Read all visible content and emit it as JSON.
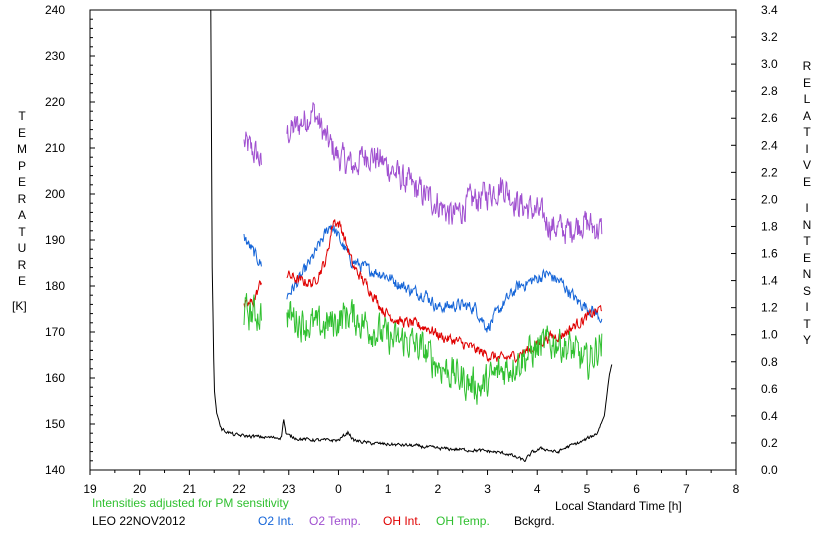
{
  "chart_data": {
    "type": "line",
    "title": "",
    "left_axis": {
      "label_letters": [
        "T",
        "E",
        "M",
        "P",
        "E",
        "R",
        "A",
        "T",
        "U",
        "R",
        "E"
      ],
      "unit": "[K]",
      "ylim": [
        140,
        240
      ],
      "ticks": [
        140,
        150,
        160,
        170,
        180,
        190,
        200,
        210,
        220,
        230,
        240
      ]
    },
    "right_axis": {
      "label_word1": [
        "R",
        "E",
        "L",
        "A",
        "T",
        "I",
        "V",
        "E"
      ],
      "label_word2": [
        "I",
        "N",
        "T",
        "E",
        "N",
        "S",
        "I",
        "T",
        "Y"
      ],
      "ylim": [
        0.0,
        3.4
      ],
      "ticks": [
        "0.0",
        "0.2",
        "0.4",
        "0.6",
        "0.8",
        "1.0",
        "1.2",
        "1.4",
        "1.6",
        "1.8",
        "2.0",
        "2.2",
        "2.4",
        "2.6",
        "2.8",
        "3.0",
        "3.2",
        "3.4"
      ]
    },
    "x_axis": {
      "label": "Local Standard Time [h]",
      "ticks": [
        "19",
        "20",
        "21",
        "22",
        "23",
        "0",
        "1",
        "2",
        "3",
        "4",
        "5",
        "6",
        "7",
        "8"
      ],
      "xlim": [
        19,
        32
      ]
    },
    "note": "Intensities adjusted for PM sensitivity",
    "station": "LEO 22NOV2012",
    "legend": [
      {
        "name": "O2 Int.",
        "color": "#1565d8"
      },
      {
        "name": "O2 Temp.",
        "color": "#a050d0"
      },
      {
        "name": "OH Int.",
        "color": "#e00000"
      },
      {
        "name": "OH Temp.",
        "color": "#30c030"
      },
      {
        "name": "Bckgrd.",
        "color": "#000000"
      }
    ],
    "series": [
      {
        "key": "o2temp",
        "axis": "left",
        "color": "#a050d0",
        "noise": 5,
        "breaks": [
          [
            22.45,
            22.95
          ]
        ],
        "trend": [
          [
            22.1,
            211
          ],
          [
            22.4,
            208
          ],
          [
            22.5,
            203
          ],
          [
            22.8,
            200
          ],
          [
            22.95,
            213
          ],
          [
            23.2,
            215
          ],
          [
            23.5,
            218
          ],
          [
            23.75,
            212
          ],
          [
            24.0,
            208
          ],
          [
            24.3,
            206
          ],
          [
            24.6,
            209
          ],
          [
            25.0,
            206
          ],
          [
            25.3,
            203
          ],
          [
            25.7,
            200
          ],
          [
            26.0,
            198
          ],
          [
            26.3,
            195
          ],
          [
            26.6,
            198
          ],
          [
            27.0,
            200
          ],
          [
            27.3,
            202
          ],
          [
            27.6,
            198
          ],
          [
            28.0,
            196
          ],
          [
            28.3,
            193
          ],
          [
            28.6,
            192
          ],
          [
            28.9,
            194
          ],
          [
            29.3,
            192
          ]
        ]
      },
      {
        "key": "o2int",
        "axis": "right",
        "color": "#1565d8",
        "noise": 1.6,
        "breaks": [
          [
            22.45,
            22.95
          ]
        ],
        "trend": [
          [
            22.1,
            1.72
          ],
          [
            22.3,
            1.6
          ],
          [
            22.45,
            1.52
          ],
          [
            22.95,
            1.28
          ],
          [
            23.2,
            1.4
          ],
          [
            23.45,
            1.55
          ],
          [
            23.7,
            1.72
          ],
          [
            23.85,
            1.82
          ],
          [
            24.0,
            1.72
          ],
          [
            24.25,
            1.55
          ],
          [
            24.6,
            1.48
          ],
          [
            24.9,
            1.45
          ],
          [
            25.2,
            1.38
          ],
          [
            25.5,
            1.32
          ],
          [
            25.75,
            1.3
          ],
          [
            26.0,
            1.2
          ],
          [
            26.4,
            1.22
          ],
          [
            26.75,
            1.2
          ],
          [
            27.0,
            1.05
          ],
          [
            27.3,
            1.22
          ],
          [
            27.6,
            1.35
          ],
          [
            27.9,
            1.4
          ],
          [
            28.2,
            1.45
          ],
          [
            28.5,
            1.38
          ],
          [
            28.8,
            1.25
          ],
          [
            29.1,
            1.18
          ],
          [
            29.3,
            1.12
          ]
        ]
      },
      {
        "key": "ohint",
        "axis": "right",
        "color": "#e00000",
        "noise": 1.4,
        "breaks": [
          [
            22.45,
            22.95
          ]
        ],
        "trend": [
          [
            22.1,
            1.2
          ],
          [
            22.3,
            1.25
          ],
          [
            22.45,
            1.4
          ],
          [
            22.95,
            1.45
          ],
          [
            23.2,
            1.4
          ],
          [
            23.5,
            1.38
          ],
          [
            23.75,
            1.55
          ],
          [
            23.9,
            1.85
          ],
          [
            24.05,
            1.8
          ],
          [
            24.3,
            1.5
          ],
          [
            24.6,
            1.35
          ],
          [
            24.9,
            1.18
          ],
          [
            25.2,
            1.1
          ],
          [
            25.5,
            1.08
          ],
          [
            25.8,
            1.05
          ],
          [
            26.1,
            0.98
          ],
          [
            26.4,
            0.95
          ],
          [
            26.7,
            0.9
          ],
          [
            27.0,
            0.85
          ],
          [
            27.3,
            0.82
          ],
          [
            27.6,
            0.85
          ],
          [
            27.9,
            0.9
          ],
          [
            28.2,
            0.98
          ],
          [
            28.5,
            1.0
          ],
          [
            28.8,
            1.08
          ],
          [
            29.1,
            1.15
          ],
          [
            29.3,
            1.2
          ]
        ]
      },
      {
        "key": "ohtemp",
        "axis": "left",
        "color": "#30c030",
        "noise": 6,
        "breaks": [
          [
            22.45,
            22.95
          ]
        ],
        "trend": [
          [
            22.1,
            174
          ],
          [
            22.4,
            174
          ],
          [
            22.95,
            174
          ],
          [
            23.3,
            172
          ],
          [
            23.6,
            171
          ],
          [
            23.9,
            172
          ],
          [
            24.2,
            174
          ],
          [
            24.5,
            172
          ],
          [
            24.8,
            170
          ],
          [
            25.1,
            168
          ],
          [
            25.4,
            168
          ],
          [
            25.7,
            166
          ],
          [
            26.0,
            163
          ],
          [
            26.3,
            161
          ],
          [
            26.6,
            159
          ],
          [
            26.9,
            158
          ],
          [
            27.2,
            161
          ],
          [
            27.5,
            163
          ],
          [
            27.8,
            165
          ],
          [
            28.1,
            167
          ],
          [
            28.4,
            168
          ],
          [
            28.7,
            166
          ],
          [
            29.0,
            163
          ],
          [
            29.3,
            168
          ]
        ]
      },
      {
        "key": "bckgrd",
        "axis": "right",
        "color": "#000000",
        "noise": 0.02,
        "breaks": [],
        "trend": [
          [
            21.43,
            3.4
          ],
          [
            21.46,
            1.5
          ],
          [
            21.5,
            0.6
          ],
          [
            21.55,
            0.42
          ],
          [
            21.65,
            0.3
          ],
          [
            21.9,
            0.26
          ],
          [
            22.2,
            0.25
          ],
          [
            22.6,
            0.24
          ],
          [
            22.85,
            0.24
          ],
          [
            22.9,
            0.38
          ],
          [
            22.95,
            0.26
          ],
          [
            23.2,
            0.23
          ],
          [
            23.6,
            0.22
          ],
          [
            24.0,
            0.22
          ],
          [
            24.2,
            0.28
          ],
          [
            24.3,
            0.22
          ],
          [
            24.6,
            0.2
          ],
          [
            25.0,
            0.19
          ],
          [
            25.5,
            0.18
          ],
          [
            26.0,
            0.16
          ],
          [
            26.5,
            0.15
          ],
          [
            27.0,
            0.14
          ],
          [
            27.4,
            0.12
          ],
          [
            27.6,
            0.09
          ],
          [
            27.75,
            0.07
          ],
          [
            27.9,
            0.13
          ],
          [
            28.1,
            0.16
          ],
          [
            28.4,
            0.13
          ],
          [
            28.6,
            0.17
          ],
          [
            28.9,
            0.21
          ],
          [
            29.2,
            0.27
          ],
          [
            29.35,
            0.4
          ],
          [
            29.45,
            0.7
          ],
          [
            29.5,
            0.78
          ]
        ]
      }
    ]
  }
}
